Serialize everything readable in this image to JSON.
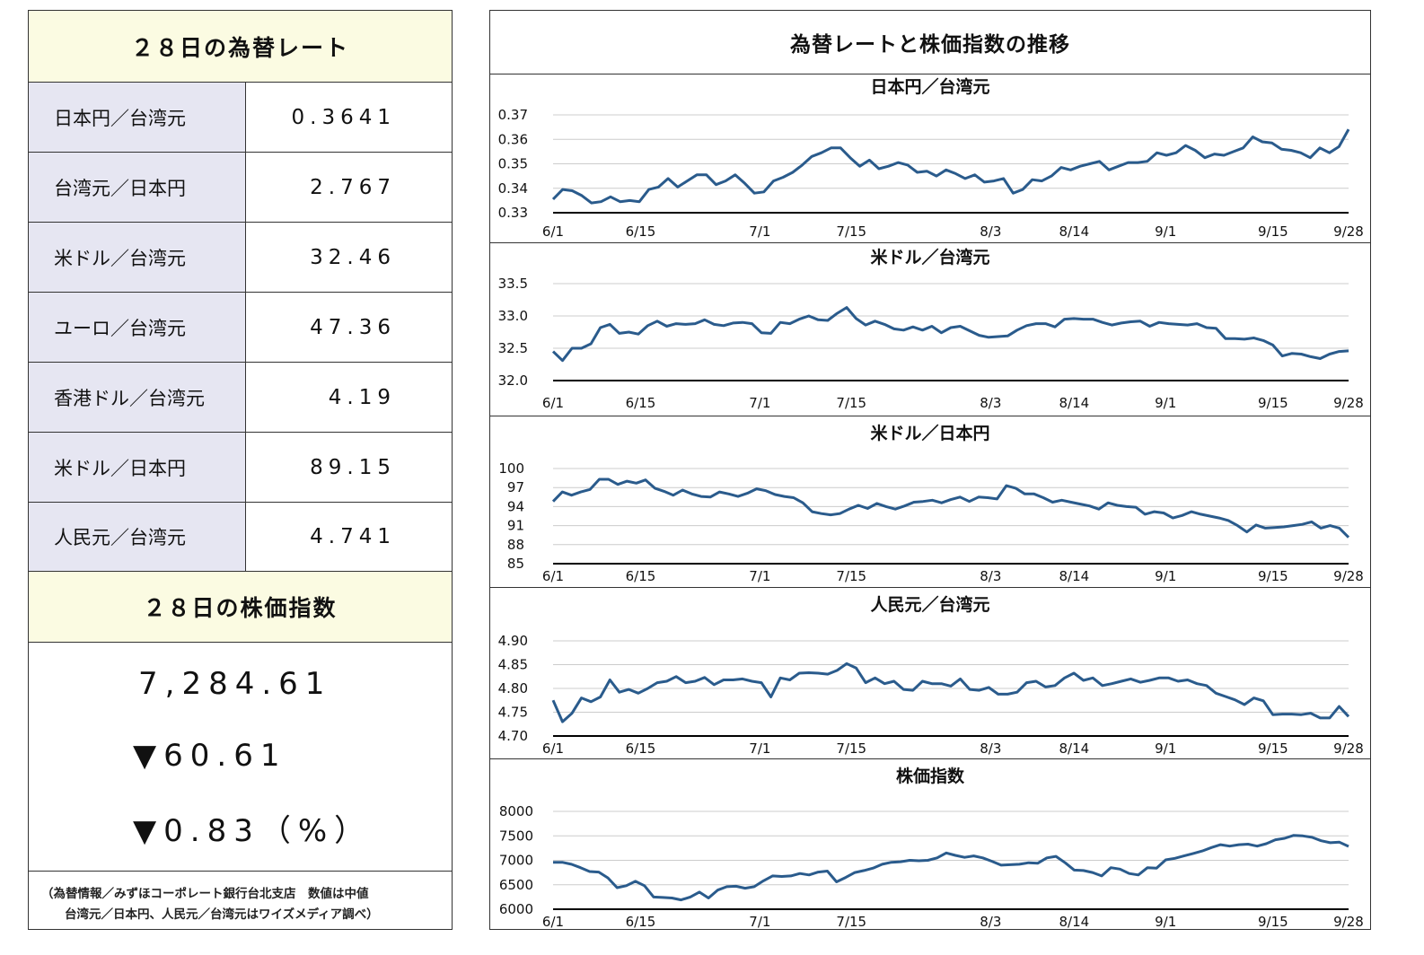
{
  "left": {
    "rates_title": "２８日の為替レート",
    "rates": [
      {
        "label": "日本円／台湾元",
        "value": "0.3641"
      },
      {
        "label": "台湾元／日本円",
        "value": "2.767"
      },
      {
        "label": "米ドル／台湾元",
        "value": "32.46"
      },
      {
        "label": "ユーロ／台湾元",
        "value": "47.36"
      },
      {
        "label": "香港ドル／台湾元",
        "value": "4.19"
      },
      {
        "label": "米ドル／日本円",
        "value": "89.15"
      },
      {
        "label": "人民元／台湾元",
        "value": "4.741"
      }
    ],
    "stock_title": "２８日の株価指数",
    "stock_index": "7,284.61",
    "stock_change": "▼60.61",
    "stock_change_pct": "▼0.83（%）",
    "note_line1": "（為替情報／みずほコーポレート銀行台北支店　数値は中値",
    "note_line2": "台湾元／日本円、人民元／台湾元はワイズメディア調べ）"
  },
  "right": {
    "title": "為替レートと株価指数の推移"
  },
  "colors": {
    "line": "#2a5b8c",
    "header_bg": "#fbfbe2",
    "label_bg": "#e6e6f2",
    "grid": "#cccccc",
    "axis": "#000000"
  },
  "chart_data": [
    {
      "type": "line",
      "title": "日本円／台湾元",
      "ylim": [
        0.33,
        0.37
      ],
      "yticks": [
        "0.33",
        "0.34",
        "0.35",
        "0.36",
        "0.37"
      ],
      "yticks_num": [
        0.33,
        0.34,
        0.35,
        0.36,
        0.37
      ],
      "xticks": [
        "6/1",
        "6/15",
        "7/1",
        "7/15",
        "8/3",
        "8/14",
        "9/1",
        "9/15",
        "9/28"
      ],
      "grid": true,
      "series": [
        {
          "values": [
            0.3355,
            0.3395,
            0.339,
            0.337,
            0.334,
            0.3345,
            0.3365,
            0.3345,
            0.335,
            0.3345,
            0.3395,
            0.3405,
            0.344,
            0.3405,
            0.343,
            0.3455,
            0.3455,
            0.3415,
            0.343,
            0.3455,
            0.342,
            0.338,
            0.3385,
            0.343,
            0.3445,
            0.3465,
            0.3495,
            0.353,
            0.3545,
            0.3565,
            0.3565,
            0.3525,
            0.349,
            0.3515,
            0.348,
            0.349,
            0.3505,
            0.3495,
            0.3465,
            0.347,
            0.345,
            0.3475,
            0.346,
            0.344,
            0.3455,
            0.3425,
            0.343,
            0.344,
            0.338,
            0.3395,
            0.3435,
            0.343,
            0.345,
            0.3485,
            0.3475,
            0.349,
            0.35,
            0.351,
            0.3475,
            0.349,
            0.3505,
            0.3505,
            0.351,
            0.3545,
            0.3535,
            0.3545,
            0.3575,
            0.3555,
            0.3525,
            0.354,
            0.3535,
            0.355,
            0.3565,
            0.361,
            0.359,
            0.3585,
            0.356,
            0.3555,
            0.3545,
            0.3525,
            0.3565,
            0.3545,
            0.357,
            0.3641
          ]
        }
      ]
    },
    {
      "type": "line",
      "title": "米ドル／台湾元",
      "ylim": [
        32.0,
        33.5
      ],
      "yticks": [
        "32.0",
        "32.5",
        "33.0",
        "33.5"
      ],
      "yticks_num": [
        32.0,
        32.5,
        33.0,
        33.5
      ],
      "xticks": [
        "6/1",
        "6/15",
        "7/1",
        "7/15",
        "8/3",
        "8/14",
        "9/1",
        "9/15",
        "9/28"
      ],
      "grid": true,
      "series": [
        {
          "values": [
            32.45,
            32.31,
            32.5,
            32.5,
            32.57,
            32.82,
            32.87,
            32.73,
            32.75,
            32.72,
            32.85,
            32.92,
            32.84,
            32.88,
            32.87,
            32.88,
            32.94,
            32.87,
            32.85,
            32.89,
            32.9,
            32.88,
            32.74,
            32.73,
            32.9,
            32.88,
            32.95,
            33.0,
            32.94,
            32.93,
            33.04,
            33.13,
            32.96,
            32.86,
            32.92,
            32.87,
            32.8,
            32.78,
            32.83,
            32.78,
            32.84,
            32.74,
            32.82,
            32.84,
            32.77,
            32.7,
            32.67,
            32.68,
            32.69,
            32.78,
            32.85,
            32.88,
            32.88,
            32.83,
            32.95,
            32.96,
            32.95,
            32.95,
            32.9,
            32.86,
            32.89,
            32.91,
            32.92,
            32.84,
            32.9,
            32.88,
            32.87,
            32.86,
            32.88,
            32.82,
            32.81,
            32.65,
            32.65,
            32.64,
            32.66,
            32.62,
            32.55,
            32.38,
            32.42,
            32.41,
            32.37,
            32.34,
            32.41,
            32.45,
            32.46
          ]
        }
      ]
    },
    {
      "type": "line",
      "title": "米ドル／日本円",
      "ylim": [
        85,
        100
      ],
      "yticks": [
        "85",
        "88",
        "91",
        "94",
        "97",
        "100"
      ],
      "yticks_num": [
        85,
        88,
        91,
        94,
        97,
        100
      ],
      "xticks": [
        "6/1",
        "6/15",
        "7/1",
        "7/15",
        "8/3",
        "8/14",
        "9/1",
        "9/15",
        "9/28"
      ],
      "grid": true,
      "series": [
        {
          "values": [
            94.8,
            96.3,
            95.8,
            96.3,
            96.7,
            98.3,
            98.3,
            97.5,
            98.0,
            97.7,
            98.2,
            96.9,
            96.4,
            95.8,
            96.6,
            96.0,
            95.6,
            95.5,
            96.3,
            96.0,
            95.6,
            96.1,
            96.8,
            96.5,
            95.9,
            95.6,
            95.4,
            94.6,
            93.2,
            92.9,
            92.7,
            92.9,
            93.6,
            94.2,
            93.7,
            94.5,
            94.0,
            93.6,
            94.1,
            94.7,
            94.8,
            95.0,
            94.6,
            95.1,
            95.5,
            94.8,
            95.5,
            95.4,
            95.2,
            97.3,
            96.9,
            96.0,
            96.0,
            95.4,
            94.7,
            95.0,
            94.7,
            94.4,
            94.1,
            93.6,
            94.6,
            94.2,
            94.0,
            93.9,
            92.8,
            93.2,
            93.0,
            92.2,
            92.6,
            93.2,
            92.8,
            92.5,
            92.2,
            91.8,
            91.0,
            90.0,
            91.1,
            90.6,
            90.7,
            90.8,
            91.0,
            91.2,
            91.6,
            90.6,
            91.0,
            90.6,
            89.15
          ]
        }
      ]
    },
    {
      "type": "line",
      "title": "人民元／台湾元",
      "ylim": [
        4.7,
        4.9
      ],
      "yticks": [
        "4.70",
        "4.75",
        "4.80",
        "4.85",
        "4.90"
      ],
      "yticks_num": [
        4.7,
        4.75,
        4.8,
        4.85,
        4.9
      ],
      "xticks": [
        "6/1",
        "6/15",
        "7/1",
        "7/15",
        "8/3",
        "8/14",
        "9/1",
        "9/15",
        "9/28"
      ],
      "grid": true,
      "series": [
        {
          "values": [
            4.775,
            4.73,
            4.748,
            4.78,
            4.772,
            4.782,
            4.818,
            4.792,
            4.798,
            4.79,
            4.8,
            4.812,
            4.815,
            4.825,
            4.812,
            4.815,
            4.823,
            4.808,
            4.818,
            4.818,
            4.82,
            4.815,
            4.812,
            4.782,
            4.822,
            4.818,
            4.832,
            4.833,
            4.832,
            4.83,
            4.838,
            4.852,
            4.843,
            4.812,
            4.822,
            4.81,
            4.815,
            4.798,
            4.796,
            4.815,
            4.81,
            4.81,
            4.805,
            4.82,
            4.798,
            4.796,
            4.802,
            4.788,
            4.788,
            4.792,
            4.812,
            4.815,
            4.803,
            4.806,
            4.822,
            4.832,
            4.817,
            4.822,
            4.806,
            4.81,
            4.815,
            4.82,
            4.813,
            4.817,
            4.822,
            4.822,
            4.815,
            4.818,
            4.81,
            4.806,
            4.79,
            4.783,
            4.776,
            4.766,
            4.78,
            4.774,
            4.745,
            4.746,
            4.746,
            4.745,
            4.748,
            4.738,
            4.738,
            4.762,
            4.741
          ]
        }
      ]
    },
    {
      "type": "line",
      "title": "株価指数",
      "ylim": [
        6000,
        8000
      ],
      "yticks": [
        "6000",
        "6500",
        "7000",
        "7500",
        "8000"
      ],
      "yticks_num": [
        6000,
        6500,
        7000,
        7500,
        8000
      ],
      "xticks": [
        "6/1",
        "6/15",
        "7/1",
        "7/15",
        "8/3",
        "8/14",
        "9/1",
        "9/15",
        "9/28"
      ],
      "grid": true,
      "series": [
        {
          "values": [
            6960,
            6960,
            6920,
            6850,
            6770,
            6760,
            6640,
            6440,
            6480,
            6570,
            6480,
            6250,
            6240,
            6230,
            6190,
            6250,
            6350,
            6230,
            6390,
            6460,
            6470,
            6430,
            6460,
            6580,
            6680,
            6670,
            6680,
            6730,
            6700,
            6760,
            6780,
            6560,
            6650,
            6750,
            6790,
            6840,
            6920,
            6960,
            6970,
            7000,
            6990,
            7000,
            7050,
            7150,
            7100,
            7060,
            7090,
            7050,
            6980,
            6900,
            6910,
            6920,
            6950,
            6940,
            7050,
            7080,
            6950,
            6800,
            6790,
            6750,
            6680,
            6850,
            6820,
            6730,
            6700,
            6850,
            6840,
            7010,
            7040,
            7090,
            7140,
            7190,
            7260,
            7320,
            7290,
            7320,
            7330,
            7290,
            7340,
            7420,
            7450,
            7510,
            7500,
            7470,
            7400,
            7360,
            7370,
            7284.61
          ]
        }
      ]
    }
  ]
}
